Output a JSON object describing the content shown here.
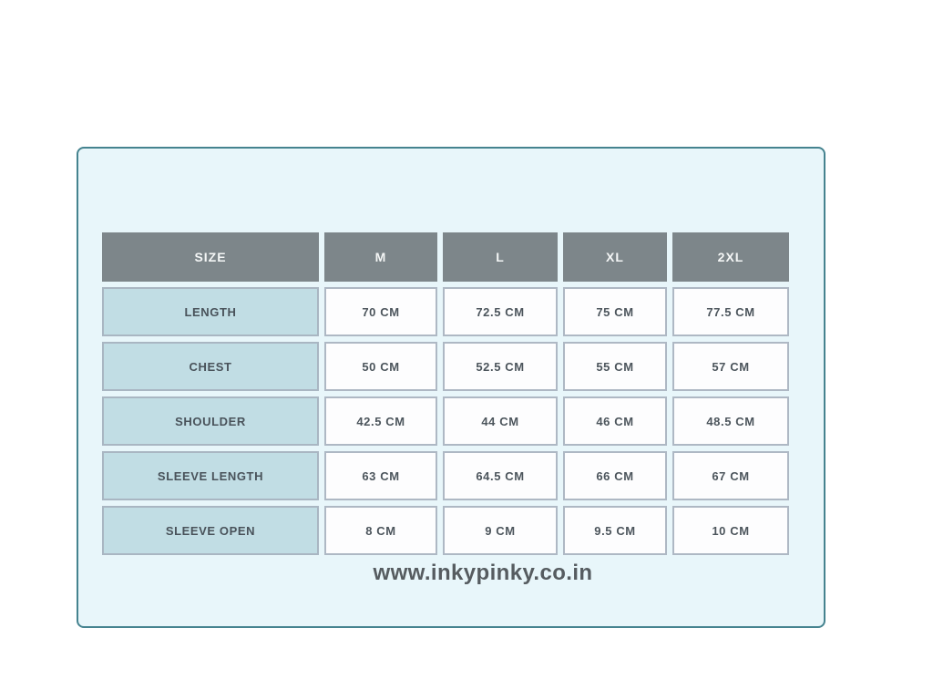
{
  "card": {
    "background": "#e8f6fa",
    "border_color": "#45838f"
  },
  "colors": {
    "header_bg": "#7d868a",
    "header_text": "#f4f6f6",
    "label_cell_bg": "#c1dde4",
    "value_cell_bg": "#fdfdfe",
    "cell_border": "#aeb8c4",
    "cell_text": "#4c555c",
    "footer_text": "#565c60"
  },
  "chart_data": {
    "type": "table",
    "title": "",
    "columns": [
      "SIZE",
      "M",
      "L",
      "XL",
      "2XL"
    ],
    "rows": [
      {
        "label": "LENGTH",
        "values": [
          "70 CM",
          "72.5 CM",
          "75 CM",
          "77.5 CM"
        ]
      },
      {
        "label": "CHEST",
        "values": [
          "50 CM",
          "52.5 CM",
          "55 CM",
          "57 CM"
        ]
      },
      {
        "label": "SHOULDER",
        "values": [
          "42.5 CM",
          "44 CM",
          "46 CM",
          "48.5 CM"
        ]
      },
      {
        "label": "SLEEVE LENGTH",
        "values": [
          "63 CM",
          "64.5 CM",
          "66 CM",
          "67 CM"
        ]
      },
      {
        "label": "SLEEVE OPEN",
        "values": [
          "8 CM",
          "9 CM",
          "9.5 CM",
          "10 CM"
        ]
      }
    ],
    "unit": "CM",
    "layout": {
      "header_row": true,
      "label_column": true,
      "grid_gaps": true
    }
  },
  "footer": {
    "website": "www.inkypinky.co.in"
  }
}
